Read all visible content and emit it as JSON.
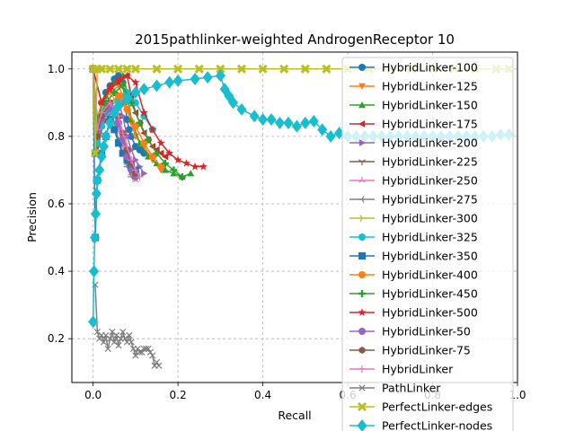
{
  "chart_data": {
    "type": "line",
    "title": "2015pathlinker-weighted AndrogenReceptor 10",
    "xlabel": "Recall",
    "ylabel": "Precision",
    "xlim": [
      -0.05,
      1.0
    ],
    "ylim": [
      0.07,
      1.05
    ],
    "grid": true,
    "legend_position": "right",
    "xticks": [
      0.0,
      0.2,
      0.4,
      0.6,
      0.8,
      1.0
    ],
    "yticks": [
      0.2,
      0.4,
      0.6,
      0.8,
      1.0
    ],
    "xtick_labels": [
      "0.0",
      "0.2",
      "0.4",
      "0.6",
      "0.8",
      "1.0"
    ],
    "ytick_labels": [
      "0.2",
      "0.4",
      "0.6",
      "0.8",
      "1.0"
    ],
    "series": [
      {
        "name": "HybridLinker-100",
        "color": "#1f77b4",
        "marker": "circle",
        "x": [
          0.0,
          0.005,
          0.01,
          0.02,
          0.03,
          0.04,
          0.05,
          0.06,
          0.07,
          0.075,
          0.08,
          0.085,
          0.09,
          0.1,
          0.11,
          0.12
        ],
        "y": [
          1.0,
          0.75,
          0.85,
          0.9,
          0.93,
          0.95,
          0.97,
          0.98,
          0.96,
          0.9,
          0.85,
          0.82,
          0.8,
          0.77,
          0.76,
          0.75
        ]
      },
      {
        "name": "HybridLinker-125",
        "color": "#ff7f0e",
        "marker": "triangle-down",
        "x": [
          0.0,
          0.01,
          0.02,
          0.04,
          0.06,
          0.07,
          0.08,
          0.09,
          0.1,
          0.12,
          0.14,
          0.16
        ],
        "y": [
          1.0,
          0.85,
          0.9,
          0.93,
          0.95,
          0.92,
          0.88,
          0.84,
          0.8,
          0.77,
          0.73,
          0.7
        ]
      },
      {
        "name": "HybridLinker-150",
        "color": "#2ca02c",
        "marker": "triangle-up",
        "x": [
          0.0,
          0.01,
          0.03,
          0.05,
          0.07,
          0.08,
          0.09,
          0.11,
          0.13,
          0.15,
          0.17,
          0.19,
          0.21,
          0.23
        ],
        "y": [
          1.0,
          0.85,
          0.92,
          0.96,
          0.98,
          0.93,
          0.85,
          0.78,
          0.74,
          0.72,
          0.7,
          0.69,
          0.68,
          0.69
        ]
      },
      {
        "name": "HybridLinker-175",
        "color": "#d62728",
        "marker": "triangle-left",
        "x": [
          0.0,
          0.02,
          0.04,
          0.06,
          0.08,
          0.09,
          0.1,
          0.11,
          0.12,
          0.13,
          0.14,
          0.15,
          0.16,
          0.17
        ],
        "y": [
          1.0,
          0.9,
          0.95,
          0.97,
          0.98,
          0.92,
          0.87,
          0.84,
          0.81,
          0.79,
          0.77,
          0.76,
          0.75,
          0.74
        ]
      },
      {
        "name": "HybridLinker-200",
        "color": "#9467bd",
        "marker": "triangle-right",
        "x": [
          0.0,
          0.01,
          0.02,
          0.04,
          0.06,
          0.07,
          0.08,
          0.09,
          0.1,
          0.11,
          0.12
        ],
        "y": [
          1.0,
          0.8,
          0.85,
          0.88,
          0.9,
          0.86,
          0.8,
          0.76,
          0.73,
          0.71,
          0.69
        ]
      },
      {
        "name": "HybridLinker-225",
        "color": "#8c564b",
        "marker": "tri-down",
        "x": [
          0.0,
          0.01,
          0.02,
          0.03,
          0.05,
          0.06,
          0.07,
          0.08,
          0.09,
          0.1
        ],
        "y": [
          1.0,
          0.75,
          0.82,
          0.85,
          0.88,
          0.84,
          0.8,
          0.75,
          0.71,
          0.68
        ]
      },
      {
        "name": "HybridLinker-250",
        "color": "#e377c2",
        "marker": "tri-up",
        "x": [
          0.0,
          0.01,
          0.02,
          0.04,
          0.05,
          0.06,
          0.07,
          0.08,
          0.09,
          0.1
        ],
        "y": [
          1.0,
          0.8,
          0.85,
          0.9,
          0.87,
          0.82,
          0.77,
          0.72,
          0.69,
          0.67
        ]
      },
      {
        "name": "HybridLinker-275",
        "color": "#7f7f7f",
        "marker": "tri-left",
        "x": [
          0.0,
          0.01,
          0.02,
          0.04,
          0.05,
          0.06,
          0.07,
          0.08,
          0.09
        ],
        "y": [
          1.0,
          0.78,
          0.84,
          0.88,
          0.84,
          0.79,
          0.75,
          0.71,
          0.68
        ]
      },
      {
        "name": "HybridLinker-300",
        "color": "#bcbd22",
        "marker": "tri-right",
        "x": [
          0.0,
          0.01,
          0.02,
          0.03,
          0.05,
          0.06,
          0.07,
          0.08,
          0.09,
          0.1
        ],
        "y": [
          1.0,
          0.82,
          0.86,
          0.89,
          0.91,
          0.86,
          0.8,
          0.75,
          0.71,
          0.68
        ]
      },
      {
        "name": "HybridLinker-325",
        "color": "#17becf",
        "marker": "circle",
        "x": [
          0.0,
          0.01,
          0.02,
          0.03,
          0.04,
          0.06,
          0.08,
          0.1,
          0.12,
          0.14
        ],
        "y": [
          1.0,
          0.78,
          0.83,
          0.87,
          0.89,
          0.91,
          0.93,
          0.9,
          0.86,
          0.82
        ]
      },
      {
        "name": "HybridLinker-350",
        "color": "#1f77b4",
        "marker": "square",
        "x": [
          0.0,
          0.005,
          0.01,
          0.02,
          0.03,
          0.04,
          0.05,
          0.06,
          0.07,
          0.08,
          0.09,
          0.1
        ],
        "y": [
          1.0,
          0.5,
          0.67,
          0.75,
          0.8,
          0.85,
          0.82,
          0.78,
          0.75,
          0.73,
          0.71,
          0.7
        ]
      },
      {
        "name": "HybridLinker-400",
        "color": "#ff7f0e",
        "marker": "circle",
        "x": [
          0.0,
          0.01,
          0.02,
          0.04,
          0.06,
          0.08,
          0.1,
          0.12,
          0.14,
          0.16
        ],
        "y": [
          1.0,
          0.8,
          0.86,
          0.9,
          0.92,
          0.88,
          0.83,
          0.78,
          0.74,
          0.71
        ]
      },
      {
        "name": "HybridLinker-450",
        "color": "#2ca02c",
        "marker": "plus",
        "x": [
          0.0,
          0.01,
          0.03,
          0.05,
          0.07,
          0.09,
          0.11,
          0.13,
          0.15,
          0.17,
          0.19,
          0.21
        ],
        "y": [
          1.0,
          0.84,
          0.9,
          0.93,
          0.95,
          0.9,
          0.84,
          0.79,
          0.75,
          0.72,
          0.7,
          0.68
        ]
      },
      {
        "name": "HybridLinker-500",
        "color": "#d62728",
        "marker": "star",
        "x": [
          0.0,
          0.02,
          0.04,
          0.06,
          0.08,
          0.1,
          0.12,
          0.14,
          0.16,
          0.18,
          0.2,
          0.22,
          0.24,
          0.26
        ],
        "y": [
          1.0,
          0.9,
          0.94,
          0.96,
          0.98,
          0.96,
          0.87,
          0.82,
          0.78,
          0.75,
          0.73,
          0.72,
          0.71,
          0.71
        ]
      },
      {
        "name": "HybridLinker-50",
        "color": "#9467bd",
        "marker": "circle",
        "x": [
          0.0,
          0.01,
          0.02,
          0.04,
          0.06,
          0.07,
          0.08,
          0.09,
          0.1
        ],
        "y": [
          1.0,
          0.8,
          0.85,
          0.88,
          0.84,
          0.79,
          0.74,
          0.7,
          0.68
        ]
      },
      {
        "name": "HybridLinker-75",
        "color": "#8c564b",
        "marker": "hexagon",
        "x": [
          0.0,
          0.01,
          0.02,
          0.04,
          0.06,
          0.07,
          0.08,
          0.09,
          0.1
        ],
        "y": [
          1.0,
          0.8,
          0.86,
          0.9,
          0.86,
          0.81,
          0.76,
          0.72,
          0.69
        ]
      },
      {
        "name": "HybridLinker",
        "color": "#e377c2",
        "marker": "plus-thin",
        "x": [
          0.0,
          0.01,
          0.02,
          0.04,
          0.06,
          0.07,
          0.08,
          0.09,
          0.1,
          0.11
        ],
        "y": [
          1.0,
          0.82,
          0.87,
          0.9,
          0.86,
          0.81,
          0.77,
          0.73,
          0.7,
          0.68
        ]
      },
      {
        "name": "PathLinker",
        "color": "#7f7f7f",
        "marker": "x",
        "x": [
          0.005,
          0.01,
          0.015,
          0.02,
          0.025,
          0.03,
          0.035,
          0.04,
          0.045,
          0.05,
          0.055,
          0.06,
          0.065,
          0.07,
          0.075,
          0.08,
          0.085,
          0.09,
          0.095,
          0.1,
          0.105,
          0.11,
          0.115,
          0.12,
          0.125,
          0.13,
          0.135,
          0.14,
          0.145,
          0.15,
          0.155
        ],
        "y": [
          0.36,
          0.22,
          0.2,
          0.21,
          0.19,
          0.21,
          0.17,
          0.2,
          0.22,
          0.19,
          0.21,
          0.18,
          0.2,
          0.22,
          0.2,
          0.19,
          0.21,
          0.19,
          0.17,
          0.15,
          0.17,
          0.16,
          0.16,
          0.17,
          0.17,
          0.17,
          0.16,
          0.15,
          0.12,
          0.13,
          0.12
        ]
      },
      {
        "name": "PerfectLinker-edges",
        "color": "#bcbd22",
        "marker": "x-thick",
        "x": [
          0.0,
          0.005,
          0.01,
          0.02,
          0.04,
          0.06,
          0.08,
          0.1,
          0.15,
          0.2,
          0.25,
          0.3,
          0.35,
          0.4,
          0.45,
          0.5,
          0.55,
          0.6,
          0.65,
          0.7,
          0.75,
          0.8,
          0.85,
          0.9,
          0.95,
          0.98
        ],
        "y": [
          1.0,
          0.75,
          1.0,
          1.0,
          1.0,
          1.0,
          1.0,
          1.0,
          1.0,
          1.0,
          1.0,
          1.0,
          1.0,
          1.0,
          1.0,
          1.0,
          1.0,
          1.0,
          1.0,
          1.0,
          1.0,
          1.0,
          1.0,
          1.0,
          1.0,
          1.0
        ]
      },
      {
        "name": "PerfectLinker-nodes",
        "color": "#17becf",
        "marker": "diamond",
        "x": [
          0.0,
          0.002,
          0.004,
          0.006,
          0.008,
          0.01,
          0.015,
          0.02,
          0.025,
          0.03,
          0.04,
          0.05,
          0.06,
          0.08,
          0.1,
          0.12,
          0.15,
          0.18,
          0.2,
          0.24,
          0.27,
          0.3,
          0.31,
          0.32,
          0.33,
          0.35,
          0.38,
          0.4,
          0.42,
          0.44,
          0.46,
          0.48,
          0.5,
          0.52,
          0.54,
          0.56,
          0.58,
          0.6,
          0.62,
          0.64,
          0.66,
          0.68,
          0.7,
          0.72,
          0.74,
          0.76,
          0.78,
          0.8,
          0.82,
          0.84,
          0.86,
          0.88,
          0.9,
          0.92,
          0.94,
          0.96,
          0.98
        ],
        "y": [
          0.25,
          0.4,
          0.5,
          0.57,
          0.63,
          0.67,
          0.7,
          0.74,
          0.77,
          0.8,
          0.84,
          0.87,
          0.89,
          0.91,
          0.93,
          0.94,
          0.95,
          0.96,
          0.965,
          0.97,
          0.975,
          0.98,
          0.94,
          0.92,
          0.9,
          0.88,
          0.86,
          0.85,
          0.85,
          0.84,
          0.84,
          0.83,
          0.84,
          0.845,
          0.82,
          0.8,
          0.81,
          0.8,
          0.8,
          0.8,
          0.8,
          0.8,
          0.8,
          0.8,
          0.8,
          0.8,
          0.8,
          0.8,
          0.8,
          0.8,
          0.8,
          0.8,
          0.8,
          0.8,
          0.8,
          0.805,
          0.805
        ]
      }
    ]
  }
}
